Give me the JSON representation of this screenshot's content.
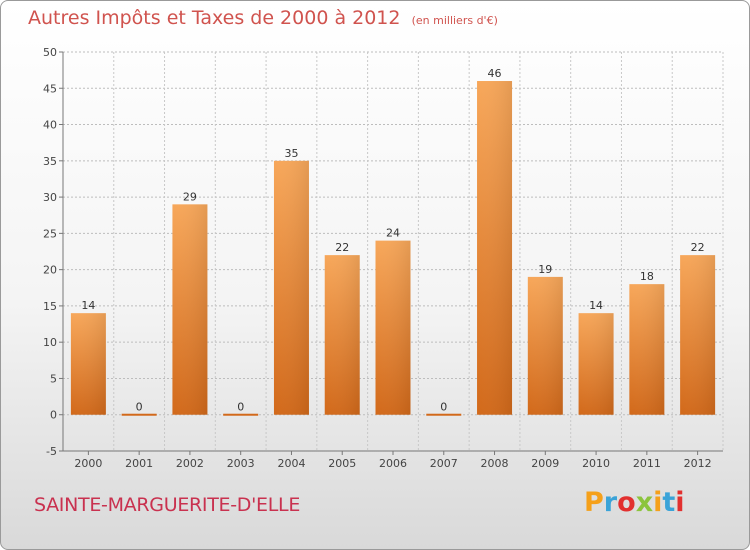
{
  "header": {
    "title": "Autres Impôts et Taxes de 2000 à 2012",
    "unit": "(en milliers d'€)"
  },
  "footer": {
    "commune": "SAINTE-MARGUERITE-D'ELLE",
    "brand": "Proxiti",
    "brand_colors": [
      "#f5a01a",
      "#3aa3d8",
      "#e2302f",
      "#8cc43d",
      "#f5a01a",
      "#3aa3d8",
      "#e2302f"
    ]
  },
  "chart_data": {
    "type": "bar",
    "title": "Autres Impôts et Taxes de 2000 à 2012",
    "categories": [
      "2000",
      "2001",
      "2002",
      "2003",
      "2004",
      "2005",
      "2006",
      "2007",
      "2008",
      "2009",
      "2010",
      "2011",
      "2012"
    ],
    "values": [
      14,
      0,
      29,
      0,
      35,
      22,
      24,
      0,
      46,
      19,
      14,
      18,
      22
    ],
    "ylim": [
      -5,
      50
    ],
    "yticks": [
      -5,
      0,
      5,
      10,
      15,
      20,
      25,
      30,
      35,
      40,
      45,
      50
    ],
    "grid": "horizontal dashed",
    "bar_color": "#f0923a",
    "bar_color_dark": "#d96f1c"
  }
}
